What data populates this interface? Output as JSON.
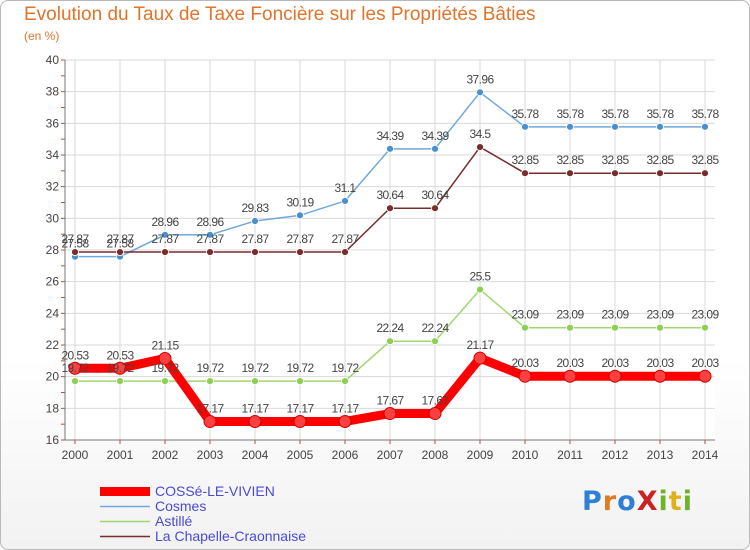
{
  "header": {
    "title": "Evolution du Taux de Taxe Foncière sur les Propriétés Bâties",
    "subtitle": "(en %)"
  },
  "logo": {
    "text": "ProXiti",
    "colors": [
      "#2f7fd8",
      "#e07a24",
      "#2f7fd8",
      "#cc2222",
      "#6cb42c",
      "#e0b020",
      "#6cb42c"
    ]
  },
  "chart_data": {
    "type": "line",
    "title": "Evolution du Taux de Taxe Foncière sur les Propriétés Bâties",
    "ylabel": "(en %)",
    "xlabel": "",
    "ylim": [
      16,
      40
    ],
    "yticks": [
      16,
      18,
      20,
      22,
      24,
      26,
      28,
      30,
      32,
      34,
      36,
      38,
      40
    ],
    "grid": true,
    "categories": [
      "2000",
      "2001",
      "2002",
      "2003",
      "2004",
      "2005",
      "2006",
      "2007",
      "2008",
      "2009",
      "2010",
      "2011",
      "2012",
      "2013",
      "2014"
    ],
    "series": [
      {
        "name": "COSSé-LE-VIVIEN",
        "color": "#ff0000",
        "marker": "#ff4040",
        "values": [
          20.53,
          20.53,
          21.15,
          17.17,
          17.17,
          17.17,
          17.17,
          17.67,
          17.67,
          21.17,
          20.03,
          20.03,
          20.03,
          20.03,
          20.03
        ],
        "labels": [
          "20.53",
          "20.53",
          "21.15",
          "17.17",
          "17.17",
          "17.17",
          "17.17",
          "17.67",
          "17.67",
          "21.17",
          "20.03",
          "20.03",
          "20.03",
          "20.03",
          "20.03"
        ]
      },
      {
        "name": "Cosmes",
        "color": "#6fa8dc",
        "marker": "#4a8fd0",
        "values": [
          27.58,
          27.58,
          28.96,
          28.96,
          29.83,
          30.19,
          31.1,
          34.39,
          34.39,
          37.96,
          35.78,
          35.78,
          35.78,
          35.78,
          35.78
        ],
        "labels": [
          "27.58",
          "27.58",
          "28.96",
          "28.96",
          "29.83",
          "30.19",
          "31.1",
          "34.39",
          "34.39",
          "37.96",
          "35.78",
          "35.78",
          "35.78",
          "35.78",
          "35.78"
        ]
      },
      {
        "name": "Astillé",
        "color": "#9fd86f",
        "marker": "#8cd050",
        "values": [
          19.72,
          19.72,
          19.72,
          19.72,
          19.72,
          19.72,
          19.72,
          22.24,
          22.24,
          25.5,
          23.09,
          23.09,
          23.09,
          23.09,
          23.09
        ],
        "labels": [
          "19.72",
          "19.72",
          "19.72",
          "19.72",
          "19.72",
          "19.72",
          "19.72",
          "22.24",
          "22.24",
          "25.5",
          "23.09",
          "23.09",
          "23.09",
          "23.09",
          "23.09"
        ]
      },
      {
        "name": "La Chapelle-Craonnaise",
        "color": "#7a2b2b",
        "marker": "#7a2b2b",
        "values": [
          27.87,
          27.87,
          27.87,
          27.87,
          27.87,
          27.87,
          27.87,
          30.64,
          30.64,
          34.5,
          32.85,
          32.85,
          32.85,
          32.85,
          32.85
        ],
        "labels": [
          "27.87",
          "27.87",
          "27.87",
          "27.87",
          "27.87",
          "27.87",
          "27.87",
          "30.64",
          "30.64",
          "34.5",
          "32.85",
          "32.85",
          "32.85",
          "32.85",
          "32.85"
        ]
      }
    ]
  }
}
